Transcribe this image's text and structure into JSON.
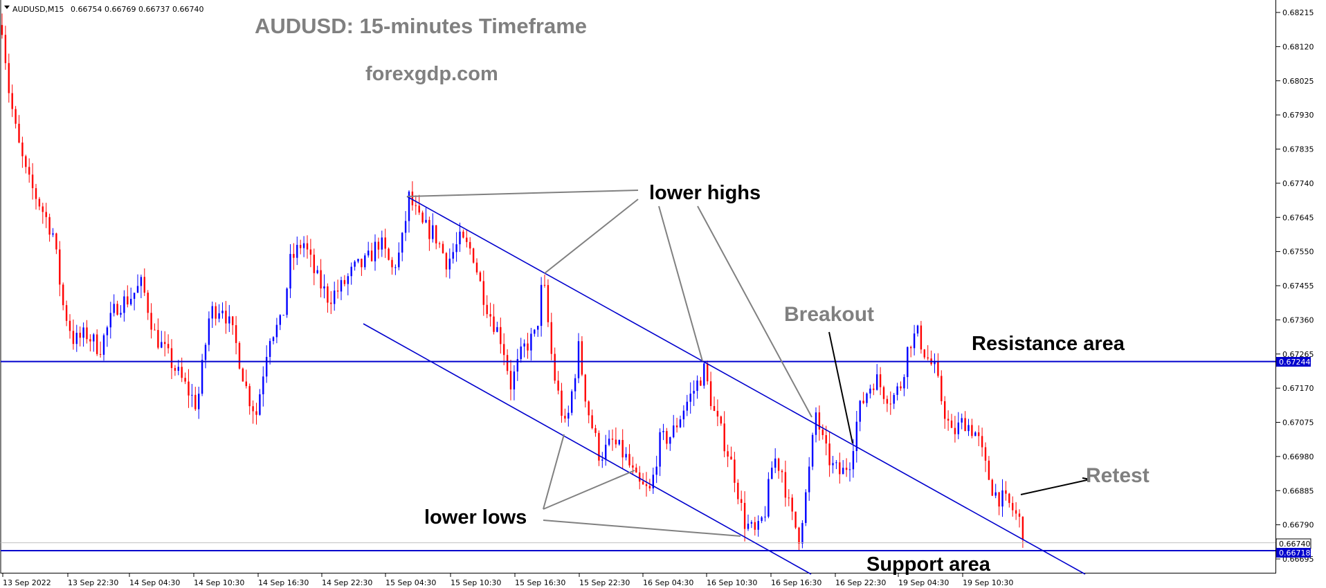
{
  "header": {
    "symbol": "AUDUSD,M15",
    "ohlc": "0.66754 0.66769 0.66737 0.66740"
  },
  "title": "AUDUSD: 15-minutes Timeframe",
  "subtitle": "forexgdp.com",
  "chart_data": {
    "type": "candlestick",
    "title": "AUDUSD: 15-minutes Timeframe",
    "instrument": "AUDUSD",
    "timeframe": "M15",
    "y_range": [
      0.6665,
      0.6826
    ],
    "y_ticks": [
      "0.68215",
      "0.68120",
      "0.68025",
      "0.67930",
      "0.67835",
      "0.67740",
      "0.67645",
      "0.67550",
      "0.67455",
      "0.67360",
      "0.67265",
      "0.67170",
      "0.67075",
      "0.66980",
      "0.66885",
      "0.66790",
      "0.66695"
    ],
    "x_ticks": [
      "13 Sep 2022",
      "13 Sep 22:30",
      "14 Sep 04:30",
      "14 Sep 10:30",
      "14 Sep 16:30",
      "14 Sep 22:30",
      "15 Sep 04:30",
      "15 Sep 10:30",
      "15 Sep 16:30",
      "15 Sep 22:30",
      "16 Sep 04:30",
      "16 Sep 10:30",
      "16 Sep 16:30",
      "16 Sep 22:30",
      "19 Sep 04:30",
      "19 Sep 10:30"
    ],
    "price_path": [
      [
        0,
        0.6818
      ],
      [
        8,
        0.68
      ],
      [
        18,
        0.6786
      ],
      [
        30,
        0.6775
      ],
      [
        45,
        0.6768
      ],
      [
        60,
        0.676
      ],
      [
        72,
        0.674
      ],
      [
        85,
        0.673
      ],
      [
        100,
        0.6732
      ],
      [
        115,
        0.6728
      ],
      [
        135,
        0.674
      ],
      [
        150,
        0.6742
      ],
      [
        165,
        0.6746
      ],
      [
        180,
        0.6732
      ],
      [
        200,
        0.6724
      ],
      [
        215,
        0.6718
      ],
      [
        230,
        0.6712
      ],
      [
        245,
        0.6738
      ],
      [
        260,
        0.674
      ],
      [
        275,
        0.673
      ],
      [
        290,
        0.6715
      ],
      [
        300,
        0.671
      ],
      [
        315,
        0.6732
      ],
      [
        330,
        0.6735
      ],
      [
        340,
        0.6752
      ],
      [
        355,
        0.6758
      ],
      [
        370,
        0.6748
      ],
      [
        385,
        0.6742
      ],
      [
        400,
        0.6745
      ],
      [
        415,
        0.675
      ],
      [
        430,
        0.6752
      ],
      [
        445,
        0.6758
      ],
      [
        460,
        0.675
      ],
      [
        470,
        0.6755
      ],
      [
        480,
        0.677
      ],
      [
        495,
        0.6762
      ],
      [
        510,
        0.676
      ],
      [
        525,
        0.6752
      ],
      [
        540,
        0.6758
      ],
      [
        555,
        0.6755
      ],
      [
        565,
        0.6745
      ],
      [
        575,
        0.6738
      ],
      [
        590,
        0.673
      ],
      [
        600,
        0.6718
      ],
      [
        615,
        0.6728
      ],
      [
        630,
        0.6732
      ],
      [
        638,
        0.6748
      ],
      [
        650,
        0.6722
      ],
      [
        665,
        0.6705
      ],
      [
        680,
        0.6728
      ],
      [
        690,
        0.6712
      ],
      [
        705,
        0.6698
      ],
      [
        720,
        0.6702
      ],
      [
        735,
        0.6698
      ],
      [
        750,
        0.669
      ],
      [
        765,
        0.6688
      ],
      [
        775,
        0.6702
      ],
      [
        790,
        0.6704
      ],
      [
        805,
        0.6712
      ],
      [
        815,
        0.6716
      ],
      [
        828,
        0.6722
      ],
      [
        840,
        0.671
      ],
      [
        855,
        0.67
      ],
      [
        865,
        0.6692
      ],
      [
        875,
        0.668
      ],
      [
        890,
        0.6676
      ],
      [
        900,
        0.6683
      ],
      [
        910,
        0.6698
      ],
      [
        920,
        0.6694
      ],
      [
        930,
        0.6682
      ],
      [
        940,
        0.6676
      ],
      [
        950,
        0.669
      ],
      [
        960,
        0.671
      ],
      [
        970,
        0.67
      ],
      [
        980,
        0.6695
      ],
      [
        990,
        0.6693
      ],
      [
        1000,
        0.6697
      ],
      [
        1010,
        0.671
      ],
      [
        1020,
        0.6716
      ],
      [
        1030,
        0.672
      ],
      [
        1040,
        0.6716
      ],
      [
        1050,
        0.6714
      ],
      [
        1060,
        0.6718
      ],
      [
        1070,
        0.673
      ],
      [
        1080,
        0.6732
      ],
      [
        1090,
        0.6726
      ],
      [
        1100,
        0.6722
      ],
      [
        1110,
        0.6712
      ],
      [
        1120,
        0.6704
      ],
      [
        1135,
        0.6708
      ],
      [
        1150,
        0.6704
      ],
      [
        1160,
        0.6695
      ],
      [
        1170,
        0.6688
      ],
      [
        1180,
        0.6686
      ],
      [
        1190,
        0.6684
      ],
      [
        1200,
        0.668
      ],
      [
        1210,
        0.6674
      ]
    ],
    "lines": [
      {
        "name": "Resistance area",
        "type": "horizontal",
        "price": 0.67244,
        "color": "#0000cd"
      },
      {
        "name": "Support area",
        "type": "horizontal",
        "price": 0.66718,
        "color": "#0000cd"
      },
      {
        "name": "last-price",
        "type": "horizontal",
        "price": 0.6674,
        "color": "#c0c0c0"
      },
      {
        "name": "channel-upper",
        "type": "trend",
        "color": "#0000cd"
      },
      {
        "name": "channel-lower",
        "type": "trend",
        "color": "#0000cd"
      }
    ]
  },
  "price_labels": {
    "resistance": "0.67244",
    "last": "0.66740",
    "support": "0.66718"
  },
  "annotations": {
    "lower_highs": "lower highs",
    "lower_lows": "lower lows",
    "breakout": "Breakout",
    "resistance_area": "Resistance area",
    "support_area": "Support area",
    "retest": "Retest"
  },
  "colors": {
    "bull": "#0000ff",
    "bear": "#ff0000",
    "line": "#0000cd",
    "annotation_grey": "#808080"
  }
}
